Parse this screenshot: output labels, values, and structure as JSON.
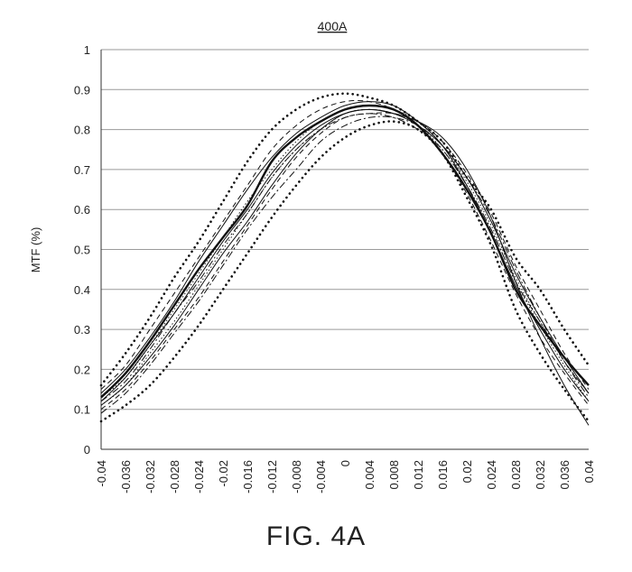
{
  "chart_data": {
    "type": "line",
    "title": "400A",
    "xlabel": "",
    "ylabel": "MTF (%)",
    "xlim": [
      -0.04,
      0.04
    ],
    "ylim": [
      0,
      1
    ],
    "grid": true,
    "x_ticks": [
      "-0.04",
      "-0.036",
      "-0.032",
      "-0.028",
      "-0.024",
      "-0.02",
      "-0.016",
      "-0.012",
      "-0.008",
      "-0.004",
      "0",
      "0.004",
      "0.008",
      "0.012",
      "0.016",
      "0.02",
      "0.024",
      "0.028",
      "0.032",
      "0.036",
      "0.04"
    ],
    "y_ticks": [
      "0",
      "0.1",
      "0.2",
      "0.3",
      "0.4",
      "0.5",
      "0.6",
      "0.7",
      "0.8",
      "0.9",
      "1"
    ],
    "x": [
      -0.04,
      -0.036,
      -0.032,
      -0.028,
      -0.024,
      -0.02,
      -0.016,
      -0.012,
      -0.008,
      -0.004,
      0,
      0.004,
      0.008,
      0.012,
      0.016,
      0.02,
      0.024,
      0.028,
      0.032,
      0.036,
      0.04
    ],
    "series": [
      {
        "style": "bold-solid",
        "values": [
          0.13,
          0.19,
          0.27,
          0.36,
          0.45,
          0.53,
          0.61,
          0.72,
          0.78,
          0.82,
          0.85,
          0.86,
          0.85,
          0.81,
          0.74,
          0.65,
          0.54,
          0.4,
          0.31,
          0.23,
          0.16
        ]
      },
      {
        "style": "dotted-heavy",
        "values": [
          0.16,
          0.24,
          0.33,
          0.43,
          0.52,
          0.62,
          0.72,
          0.8,
          0.85,
          0.88,
          0.89,
          0.88,
          0.86,
          0.82,
          0.77,
          0.68,
          0.6,
          0.48,
          0.4,
          0.3,
          0.21
        ]
      },
      {
        "style": "dotted-heavy",
        "values": [
          0.07,
          0.11,
          0.16,
          0.23,
          0.31,
          0.4,
          0.49,
          0.58,
          0.66,
          0.73,
          0.78,
          0.81,
          0.82,
          0.8,
          0.74,
          0.63,
          0.51,
          0.35,
          0.24,
          0.15,
          0.07
        ]
      },
      {
        "style": "solid",
        "values": [
          0.11,
          0.16,
          0.23,
          0.31,
          0.4,
          0.49,
          0.57,
          0.66,
          0.74,
          0.8,
          0.84,
          0.85,
          0.84,
          0.82,
          0.78,
          0.7,
          0.58,
          0.42,
          0.28,
          0.16,
          0.06
        ]
      },
      {
        "style": "solid",
        "values": [
          0.14,
          0.2,
          0.28,
          0.37,
          0.47,
          0.56,
          0.65,
          0.73,
          0.79,
          0.83,
          0.86,
          0.87,
          0.86,
          0.82,
          0.76,
          0.66,
          0.54,
          0.41,
          0.3,
          0.2,
          0.12
        ]
      },
      {
        "style": "dash-dot",
        "values": [
          0.12,
          0.17,
          0.25,
          0.34,
          0.42,
          0.51,
          0.59,
          0.68,
          0.75,
          0.8,
          0.83,
          0.84,
          0.83,
          0.8,
          0.75,
          0.66,
          0.55,
          0.42,
          0.32,
          0.22,
          0.14
        ]
      },
      {
        "style": "dash-dot",
        "values": [
          0.09,
          0.14,
          0.21,
          0.29,
          0.37,
          0.46,
          0.55,
          0.63,
          0.7,
          0.77,
          0.81,
          0.83,
          0.83,
          0.81,
          0.76,
          0.68,
          0.58,
          0.45,
          0.33,
          0.22,
          0.13
        ]
      },
      {
        "style": "dashed",
        "values": [
          0.15,
          0.21,
          0.3,
          0.39,
          0.48,
          0.57,
          0.66,
          0.75,
          0.81,
          0.85,
          0.87,
          0.87,
          0.85,
          0.81,
          0.74,
          0.64,
          0.52,
          0.39,
          0.28,
          0.19,
          0.11
        ]
      },
      {
        "style": "dashed",
        "values": [
          0.1,
          0.15,
          0.22,
          0.3,
          0.38,
          0.47,
          0.56,
          0.65,
          0.73,
          0.79,
          0.83,
          0.84,
          0.84,
          0.82,
          0.77,
          0.69,
          0.59,
          0.46,
          0.35,
          0.24,
          0.15
        ]
      },
      {
        "style": "dotted-fine",
        "values": [
          0.13,
          0.18,
          0.26,
          0.35,
          0.44,
          0.53,
          0.62,
          0.7,
          0.77,
          0.82,
          0.85,
          0.86,
          0.85,
          0.82,
          0.76,
          0.67,
          0.56,
          0.43,
          0.32,
          0.22,
          0.14
        ]
      },
      {
        "style": "dotted-fine",
        "values": [
          0.11,
          0.16,
          0.24,
          0.32,
          0.41,
          0.5,
          0.59,
          0.68,
          0.75,
          0.8,
          0.84,
          0.85,
          0.84,
          0.81,
          0.75,
          0.66,
          0.55,
          0.42,
          0.31,
          0.21,
          0.12
        ]
      },
      {
        "style": "solid",
        "values": [
          0.12,
          0.18,
          0.26,
          0.34,
          0.43,
          0.52,
          0.6,
          0.69,
          0.76,
          0.81,
          0.84,
          0.85,
          0.84,
          0.81,
          0.76,
          0.68,
          0.57,
          0.44,
          0.33,
          0.23,
          0.14
        ]
      }
    ]
  },
  "caption": "FIG. 4A",
  "colors": {
    "line": "#111111",
    "grid": "#9a9a9a",
    "axis": "#333333"
  }
}
